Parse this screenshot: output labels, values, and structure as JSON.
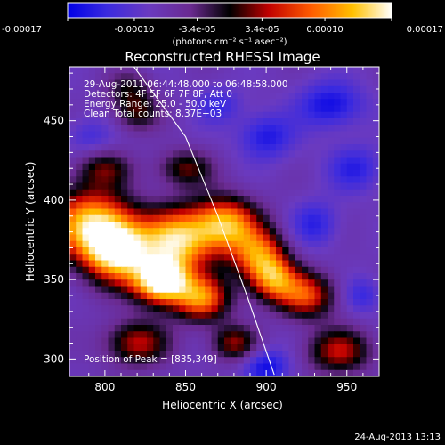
{
  "chart_data": {
    "type": "heatmap",
    "title": "Reconstructed RHESSI Image",
    "xlabel": "Heliocentric X (arcsec)",
    "ylabel": "Heliocentric Y (arcsec)",
    "xlim": [
      778,
      970
    ],
    "ylim": [
      289,
      484
    ],
    "xticks": [
      800,
      850,
      900,
      950
    ],
    "yticks": [
      300,
      350,
      400,
      450
    ],
    "colorbar": {
      "min": -0.00017,
      "max": 0.00017,
      "ticks": [
        {
          "value": -0.00017,
          "label": "-0.00017"
        },
        {
          "value": -0.0001,
          "label": "-0.00010"
        },
        {
          "value": -3.4e-05,
          "label": "-3.4e-05"
        },
        {
          "value": 3.4e-05,
          "label": "3.4e-05"
        },
        {
          "value": 0.0001,
          "label": "0.00010"
        },
        {
          "value": 0.00017,
          "label": "0.00017"
        }
      ],
      "unit_label": "(photons cm⁻² s⁻¹ asec⁻²)"
    },
    "annotations": {
      "time": "29-Aug-2011 06:44:48.000 to 06:48:58.000",
      "detectors": "Detectors: 4F 5F 6F 7F 8F, Att 0",
      "energy": "Energy Range: 25.0 - 50.0 keV",
      "clean": "Clean     Total counts: 8.37E+03",
      "peak": "Position of Peak = [835,349]"
    },
    "peak": {
      "x": 835,
      "y": 349
    },
    "limb": [
      {
        "x": 818,
        "y": 484
      },
      {
        "x": 850,
        "y": 440
      },
      {
        "x": 870,
        "y": 390
      },
      {
        "x": 888,
        "y": 340
      },
      {
        "x": 905,
        "y": 290
      }
    ],
    "sources": [
      {
        "x": 790,
        "y": 385,
        "amp": 0.75,
        "sx": 18,
        "sy": 16
      },
      {
        "x": 808,
        "y": 368,
        "amp": 0.85,
        "sx": 14,
        "sy": 14
      },
      {
        "x": 835,
        "y": 349,
        "amp": 1.0,
        "sx": 12,
        "sy": 10
      },
      {
        "x": 845,
        "y": 375,
        "amp": 0.8,
        "sx": 16,
        "sy": 14
      },
      {
        "x": 875,
        "y": 385,
        "amp": 0.7,
        "sx": 14,
        "sy": 12
      },
      {
        "x": 895,
        "y": 365,
        "amp": 0.6,
        "sx": 12,
        "sy": 12
      },
      {
        "x": 860,
        "y": 338,
        "amp": 0.65,
        "sx": 12,
        "sy": 10
      },
      {
        "x": 905,
        "y": 350,
        "amp": 0.55,
        "sx": 10,
        "sy": 10
      },
      {
        "x": 925,
        "y": 340,
        "amp": 0.55,
        "sx": 12,
        "sy": 10
      },
      {
        "x": 800,
        "y": 420,
        "amp": 0.3,
        "sx": 12,
        "sy": 8
      },
      {
        "x": 850,
        "y": 420,
        "amp": 0.35,
        "sx": 12,
        "sy": 8
      },
      {
        "x": 820,
        "y": 310,
        "amp": 0.45,
        "sx": 14,
        "sy": 10
      },
      {
        "x": 945,
        "y": 305,
        "amp": 0.45,
        "sx": 14,
        "sy": 10
      },
      {
        "x": 880,
        "y": 310,
        "amp": 0.4,
        "sx": 10,
        "sy": 8
      },
      {
        "x": 815,
        "y": 470,
        "amp": 0.25,
        "sx": 10,
        "sy": 8
      },
      {
        "x": 820,
        "y": 455,
        "amp": 0.3,
        "sx": 10,
        "sy": 8
      },
      {
        "x": 900,
        "y": 440,
        "amp": -0.35,
        "sx": 12,
        "sy": 10
      },
      {
        "x": 940,
        "y": 460,
        "amp": -0.4,
        "sx": 14,
        "sy": 10
      },
      {
        "x": 955,
        "y": 420,
        "amp": -0.3,
        "sx": 12,
        "sy": 10
      },
      {
        "x": 930,
        "y": 385,
        "amp": -0.3,
        "sx": 10,
        "sy": 10
      },
      {
        "x": 900,
        "y": 295,
        "amp": -0.4,
        "sx": 10,
        "sy": 8
      },
      {
        "x": 960,
        "y": 340,
        "amp": -0.25,
        "sx": 8,
        "sy": 8
      },
      {
        "x": 870,
        "y": 460,
        "amp": -0.25,
        "sx": 10,
        "sy": 8
      },
      {
        "x": 790,
        "y": 440,
        "amp": -0.2,
        "sx": 10,
        "sy": 8
      }
    ]
  },
  "footer": {
    "timestamp": "24-Aug-2013 13:13"
  }
}
